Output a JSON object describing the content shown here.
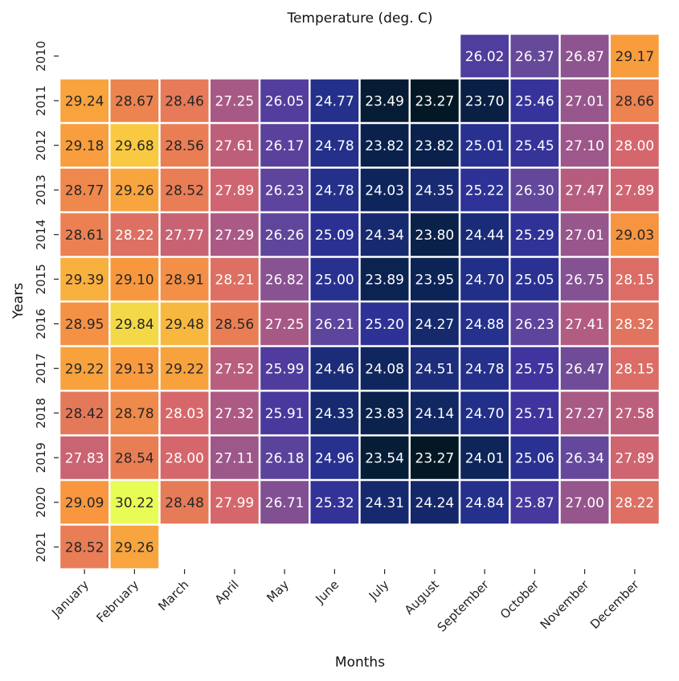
{
  "chart_data": {
    "type": "heatmap",
    "title": "Temperature (deg. C)",
    "xlabel": "Months",
    "ylabel": "Years",
    "x": [
      "January",
      "February",
      "March",
      "April",
      "May",
      "June",
      "July",
      "August",
      "September",
      "October",
      "November",
      "December"
    ],
    "y": [
      "2010",
      "2011",
      "2012",
      "2013",
      "2014",
      "2015",
      "2016",
      "2017",
      "2018",
      "2019",
      "2020",
      "2021"
    ],
    "values": [
      [
        null,
        null,
        null,
        null,
        null,
        null,
        null,
        null,
        26.02,
        26.37,
        26.87,
        29.17
      ],
      [
        29.24,
        28.67,
        28.46,
        27.25,
        26.05,
        24.77,
        23.49,
        23.27,
        23.7,
        25.46,
        27.01,
        28.66
      ],
      [
        29.18,
        29.68,
        28.56,
        27.61,
        26.17,
        24.78,
        23.82,
        23.82,
        25.01,
        25.45,
        27.1,
        28.0
      ],
      [
        28.77,
        29.26,
        28.52,
        27.89,
        26.23,
        24.78,
        24.03,
        24.35,
        25.22,
        26.3,
        27.47,
        27.89
      ],
      [
        28.61,
        28.22,
        27.77,
        27.29,
        26.26,
        25.09,
        24.34,
        23.8,
        24.44,
        25.29,
        27.01,
        29.03
      ],
      [
        29.39,
        29.1,
        28.91,
        28.21,
        26.82,
        25.0,
        23.89,
        23.95,
        24.7,
        25.05,
        26.75,
        28.15
      ],
      [
        28.95,
        29.84,
        29.48,
        28.56,
        27.25,
        26.21,
        25.2,
        24.27,
        24.88,
        26.23,
        27.41,
        28.32
      ],
      [
        29.22,
        29.13,
        29.22,
        27.52,
        25.99,
        24.46,
        24.08,
        24.51,
        24.78,
        25.75,
        26.47,
        28.15
      ],
      [
        28.42,
        28.78,
        28.03,
        27.32,
        25.91,
        24.33,
        23.83,
        24.14,
        24.7,
        25.71,
        27.27,
        27.58
      ],
      [
        27.83,
        28.54,
        28.0,
        27.11,
        26.18,
        24.96,
        23.54,
        23.27,
        24.01,
        25.06,
        26.34,
        27.89
      ],
      [
        29.09,
        30.22,
        28.48,
        27.99,
        26.71,
        25.32,
        24.31,
        24.24,
        24.84,
        25.87,
        27.0,
        28.22
      ],
      [
        28.52,
        29.26,
        null,
        null,
        null,
        null,
        null,
        null,
        null,
        null,
        null,
        null
      ]
    ],
    "colormap": "plasma-like (dark navy to yellow)",
    "vmin": 23.27,
    "vmax": 30.22,
    "grid": false,
    "legend": "none"
  }
}
